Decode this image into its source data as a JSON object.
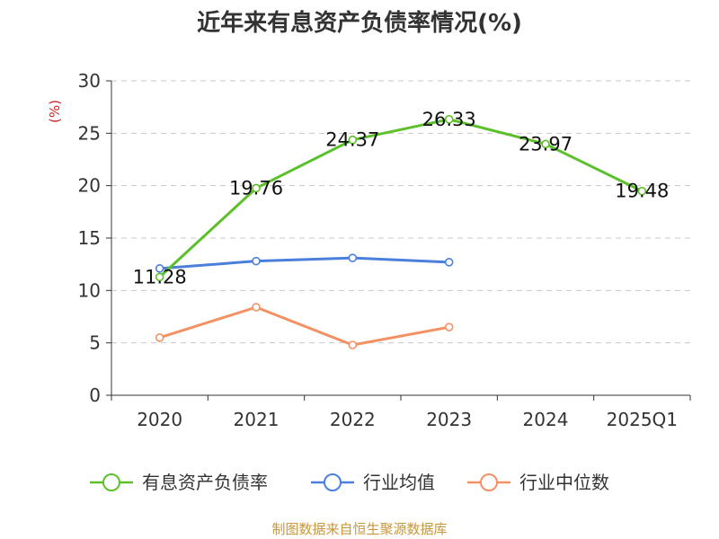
{
  "chart_data": {
    "type": "line",
    "title": "近年来有息资产负债率情况(%)",
    "ylabel": "(%)",
    "xlabel": "",
    "categories": [
      "2020",
      "2021",
      "2022",
      "2023",
      "2024",
      "2025Q1"
    ],
    "ylim": [
      0,
      30
    ],
    "yticks": [
      0,
      5,
      10,
      15,
      20,
      25,
      30
    ],
    "grid": true,
    "legend_position": "bottom",
    "series": [
      {
        "name": "有息资产负债率",
        "color": "#5cc02b",
        "values": [
          11.28,
          19.76,
          24.37,
          26.33,
          23.97,
          19.48
        ],
        "labels": [
          "11.28",
          "19.76",
          "24.37",
          "26.33",
          "23.97",
          "19.48"
        ]
      },
      {
        "name": "行业均值",
        "color": "#4a7fdc",
        "values": [
          12.1,
          12.8,
          13.1,
          12.7,
          null,
          null
        ]
      },
      {
        "name": "行业中位数",
        "color": "#f39163",
        "values": [
          5.5,
          8.4,
          4.8,
          6.5,
          null,
          null
        ]
      }
    ]
  },
  "source": "制图数据来自恒生聚源数据库"
}
